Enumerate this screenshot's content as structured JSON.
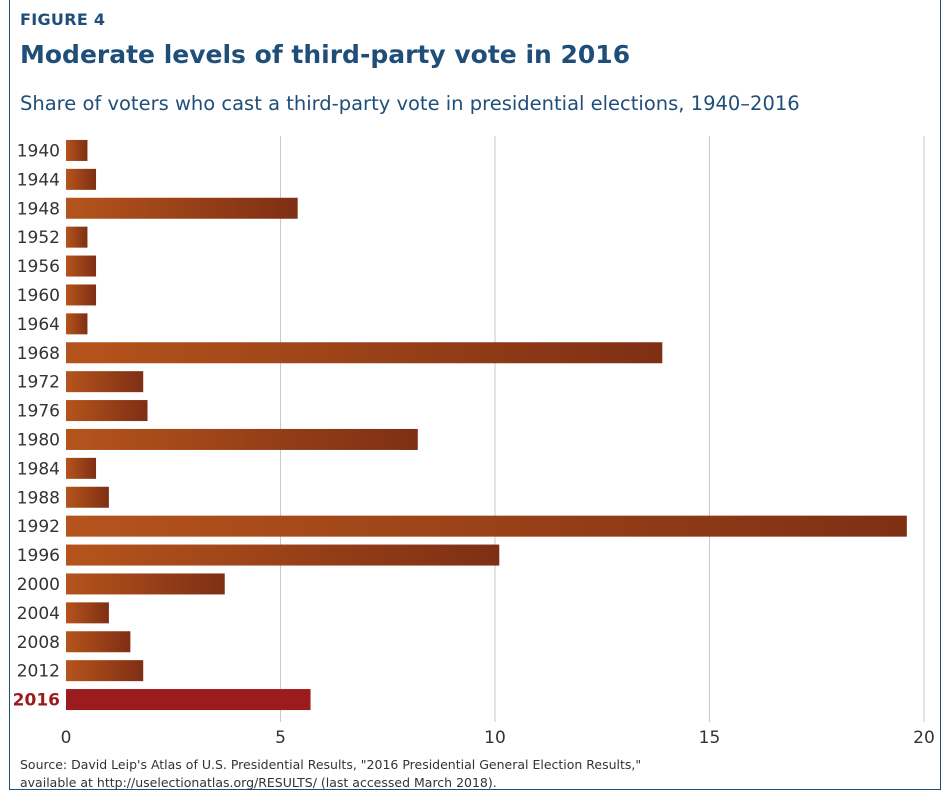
{
  "figure_label": "FIGURE 4",
  "title": "Moderate levels of third-party vote in 2016",
  "subtitle": "Share of voters who cast a third-party vote in presidential elections, 1940–2016",
  "source_lines": [
    "Source: David Leip's Atlas of U.S. Presidential Results, \"2016 Presidential General Election Results,\"",
    "available at http://uselectionatlas.org/RESULTS/ (last accessed March 2018)."
  ],
  "colors": {
    "title": "#1f4e79",
    "bar": "#b5541c",
    "bar_dark": "#7e2f14",
    "highlight": "#9b1b1f",
    "grid": "#c9c9c9"
  },
  "chart_data": {
    "type": "bar",
    "orientation": "horizontal",
    "categories": [
      "1940",
      "1944",
      "1948",
      "1952",
      "1956",
      "1960",
      "1964",
      "1968",
      "1972",
      "1976",
      "1980",
      "1984",
      "1988",
      "1992",
      "1996",
      "2000",
      "2004",
      "2008",
      "2012",
      "2016"
    ],
    "values": [
      0.5,
      0.7,
      5.4,
      0.5,
      0.7,
      0.7,
      0.5,
      13.9,
      1.8,
      1.9,
      8.2,
      0.7,
      1.0,
      19.6,
      10.1,
      3.7,
      1.0,
      1.5,
      1.8,
      5.7
    ],
    "highlight_category": "2016",
    "xlim": [
      0,
      20
    ],
    "xticks": [
      0,
      5,
      10,
      15,
      20
    ],
    "grid": true
  }
}
